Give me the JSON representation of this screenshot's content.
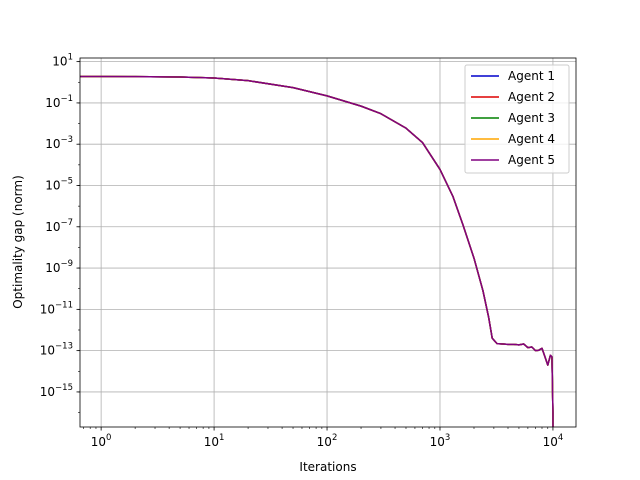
{
  "chart_data": {
    "type": "line",
    "title": "",
    "xlabel": "Iterations",
    "ylabel": "Optimality gap (norm)",
    "xscale": "log",
    "yscale": "log",
    "xlim": [
      0.65,
      16000
    ],
    "ylim": [
      2e-17,
      15
    ],
    "grid": true,
    "legend_position": "top-right",
    "x_ticks": [
      {
        "value": 1,
        "base": "10",
        "exp": "0"
      },
      {
        "value": 10,
        "base": "10",
        "exp": "1"
      },
      {
        "value": 100,
        "base": "10",
        "exp": "2"
      },
      {
        "value": 1000,
        "base": "10",
        "exp": "3"
      },
      {
        "value": 10000,
        "base": "10",
        "exp": "4"
      }
    ],
    "y_ticks": [
      {
        "value": 10.0,
        "base": "10",
        "exp": "1"
      },
      {
        "value": 0.1,
        "base": "10",
        "exp": "−1"
      },
      {
        "value": 0.001,
        "base": "10",
        "exp": "−3"
      },
      {
        "value": 1e-05,
        "base": "10",
        "exp": "−5"
      },
      {
        "value": 1e-07,
        "base": "10",
        "exp": "−7"
      },
      {
        "value": 1e-09,
        "base": "10",
        "exp": "−9"
      },
      {
        "value": 1e-11,
        "base": "10",
        "exp": "−11"
      },
      {
        "value": 1e-13,
        "base": "10",
        "exp": "−13"
      },
      {
        "value": 1e-15,
        "base": "10",
        "exp": "−15"
      }
    ],
    "x": [
      0.65,
      1,
      2,
      5,
      10,
      20,
      50,
      100,
      200,
      300,
      500,
      700,
      1000,
      1300,
      1600,
      2000,
      2400,
      2700,
      2900,
      3200,
      3600,
      4000,
      4500,
      5000,
      5500,
      6000,
      6500,
      7000,
      7500,
      8000,
      8500,
      9000,
      9500,
      9800,
      10000,
      10000
    ],
    "series": [
      {
        "name": "Agent 1",
        "color": "#0000cc",
        "values": [
          1.9,
          1.9,
          1.88,
          1.8,
          1.6,
          1.2,
          0.55,
          0.22,
          0.07,
          0.03,
          0.006,
          0.0012,
          6e-05,
          3e-06,
          1.2e-07,
          3e-09,
          8e-11,
          4e-12,
          4e-13,
          2.2e-13,
          2.1e-13,
          2e-13,
          2e-13,
          1.9e-13,
          2.1e-13,
          1.4e-13,
          1.5e-13,
          1e-13,
          1.05e-13,
          1.3e-13,
          5e-14,
          2e-14,
          6e-14,
          5e-14,
          1e-16,
          2e-17
        ]
      },
      {
        "name": "Agent 2",
        "color": "#dd0000",
        "values": [
          1.9,
          1.9,
          1.88,
          1.8,
          1.6,
          1.2,
          0.55,
          0.22,
          0.07,
          0.03,
          0.006,
          0.0012,
          6e-05,
          3e-06,
          1.2e-07,
          3e-09,
          8e-11,
          4e-12,
          4e-13,
          2.2e-13,
          2.1e-13,
          2e-13,
          2e-13,
          1.9e-13,
          2.1e-13,
          1.4e-13,
          1.5e-13,
          1e-13,
          1.05e-13,
          1.3e-13,
          5e-14,
          2e-14,
          6e-14,
          5e-14,
          1e-16,
          2e-17
        ]
      },
      {
        "name": "Agent 3",
        "color": "#008000",
        "values": [
          1.9,
          1.9,
          1.88,
          1.8,
          1.6,
          1.2,
          0.55,
          0.22,
          0.07,
          0.03,
          0.006,
          0.0012,
          6e-05,
          3e-06,
          1.2e-07,
          3e-09,
          8e-11,
          4e-12,
          4e-13,
          2.2e-13,
          2.1e-13,
          2e-13,
          2e-13,
          1.9e-13,
          2.1e-13,
          1.4e-13,
          1.5e-13,
          1e-13,
          1.05e-13,
          1.3e-13,
          5e-14,
          2e-14,
          6e-14,
          5e-14,
          1e-16,
          2e-17
        ]
      },
      {
        "name": "Agent 4",
        "color": "#ffa500",
        "values": [
          1.9,
          1.9,
          1.88,
          1.8,
          1.6,
          1.2,
          0.55,
          0.22,
          0.07,
          0.03,
          0.006,
          0.0012,
          6e-05,
          3e-06,
          1.2e-07,
          3e-09,
          8e-11,
          4e-12,
          4e-13,
          2.2e-13,
          2.1e-13,
          2e-13,
          2e-13,
          1.9e-13,
          2.1e-13,
          1.4e-13,
          1.5e-13,
          1e-13,
          1.05e-13,
          1.3e-13,
          5e-14,
          2e-14,
          6e-14,
          5e-14,
          1e-16,
          2e-17
        ]
      },
      {
        "name": "Agent 5",
        "color": "#800080",
        "values": [
          1.9,
          1.9,
          1.88,
          1.8,
          1.6,
          1.2,
          0.55,
          0.22,
          0.07,
          0.03,
          0.006,
          0.0012,
          6e-05,
          3e-06,
          1.2e-07,
          3e-09,
          8e-11,
          4e-12,
          4e-13,
          2.2e-13,
          2.1e-13,
          2e-13,
          2e-13,
          1.9e-13,
          2.1e-13,
          1.4e-13,
          1.5e-13,
          1e-13,
          1.05e-13,
          1.3e-13,
          5e-14,
          2e-14,
          6e-14,
          5e-14,
          1e-16,
          2e-17
        ]
      }
    ]
  }
}
